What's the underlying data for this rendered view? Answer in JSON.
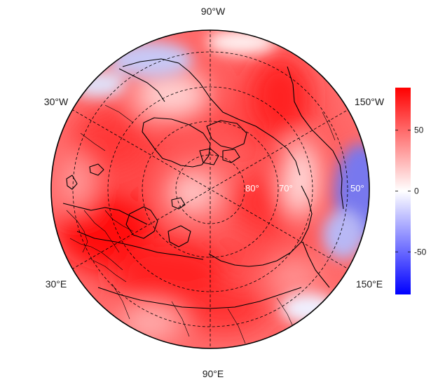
{
  "map": {
    "projection": "north-polar-stereographic",
    "longitude_labels": {
      "top": "90°W",
      "bottom": "90°E",
      "upper_left": "30°W",
      "upper_right": "150°W",
      "lower_left": "30°E",
      "lower_right": "150°E"
    },
    "latitude_labels": [
      "80°",
      "70°",
      "50°"
    ],
    "graticule": "dashed",
    "coastlines": true,
    "country_borders": true
  },
  "colorbar": {
    "ticks": [
      "50",
      "0",
      "-50"
    ],
    "tick_values": [
      50,
      0,
      -50
    ],
    "range": [
      -85,
      85
    ],
    "colors": {
      "max": "#ff0000",
      "mid": "#ffffff",
      "min": "#0000ff"
    }
  }
}
